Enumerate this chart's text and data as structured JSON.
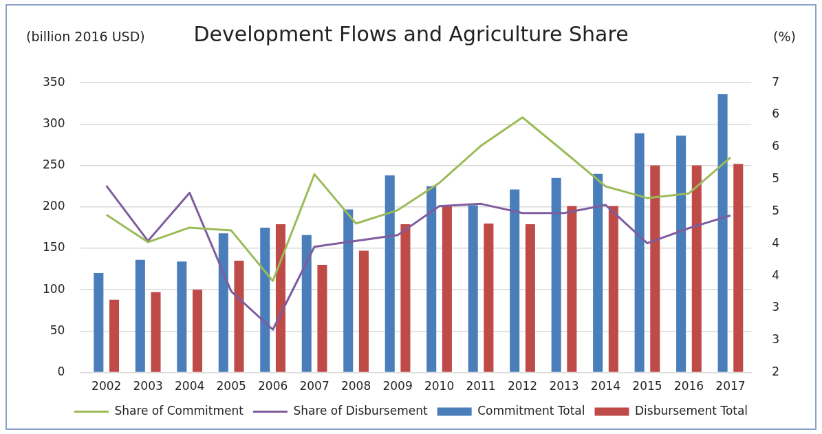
{
  "chart_data": {
    "type": "bar",
    "title": "Development Flows and Agriculture Share",
    "ylabel": "(billion 2016 USD)",
    "y2label": "(%)",
    "categories": [
      "2002",
      "2003",
      "2004",
      "2005",
      "2006",
      "2007",
      "2008",
      "2009",
      "2010",
      "2011",
      "2012",
      "2013",
      "2014",
      "2015",
      "2016",
      "2017"
    ],
    "series": [
      {
        "name": "Commitment Total",
        "color": "#4a7ebb",
        "values": [
          120,
          136,
          134,
          168,
          175,
          166,
          197,
          238,
          225,
          202,
          221,
          235,
          240,
          289,
          286,
          336
        ]
      },
      {
        "name": "Disbursement Total",
        "color": "#be4b48",
        "values": [
          88,
          97,
          100,
          135,
          179,
          130,
          147,
          179,
          202,
          180,
          179,
          201,
          201,
          250,
          250,
          252
        ]
      },
      {
        "name": "Share of Commitment",
        "type": "line",
        "axis": "y2",
        "color": "#9bbb59",
        "values": [
          4.72,
          4.25,
          4.5,
          4.45,
          3.58,
          5.42,
          4.57,
          4.8,
          5.27,
          5.91,
          6.4,
          5.81,
          5.21,
          5.01,
          5.09,
          5.71
        ]
      },
      {
        "name": "Share of Disbursement",
        "type": "line",
        "axis": "y2",
        "color": "#7e5c9e",
        "values": [
          5.22,
          4.27,
          5.1,
          3.4,
          2.74,
          4.17,
          4.27,
          4.37,
          4.87,
          4.91,
          4.75,
          4.75,
          4.89,
          4.23,
          4.49,
          4.71
        ]
      }
    ],
    "ylim": [
      0,
      350
    ],
    "yticks": [
      0,
      50,
      100,
      150,
      200,
      250,
      300,
      350
    ],
    "y2lim": [
      2,
      7
    ],
    "y2ticks": [
      2,
      {
        "value": 2.5556,
        "label": "3"
      },
      {
        "value": 3.1111,
        "label": "3"
      },
      {
        "value": 3.6667,
        "label": "4"
      },
      {
        "value": 4.2222,
        "label": "4"
      },
      {
        "value": 4.7778,
        "label": "5"
      },
      {
        "value": 5.3333,
        "label": "5"
      },
      {
        "value": 5.8889,
        "label": "6"
      },
      {
        "value": 6.4444,
        "label": "6"
      },
      7
    ],
    "grid": "y",
    "legend": "bottom",
    "marker": "none",
    "line_style": "solid"
  }
}
